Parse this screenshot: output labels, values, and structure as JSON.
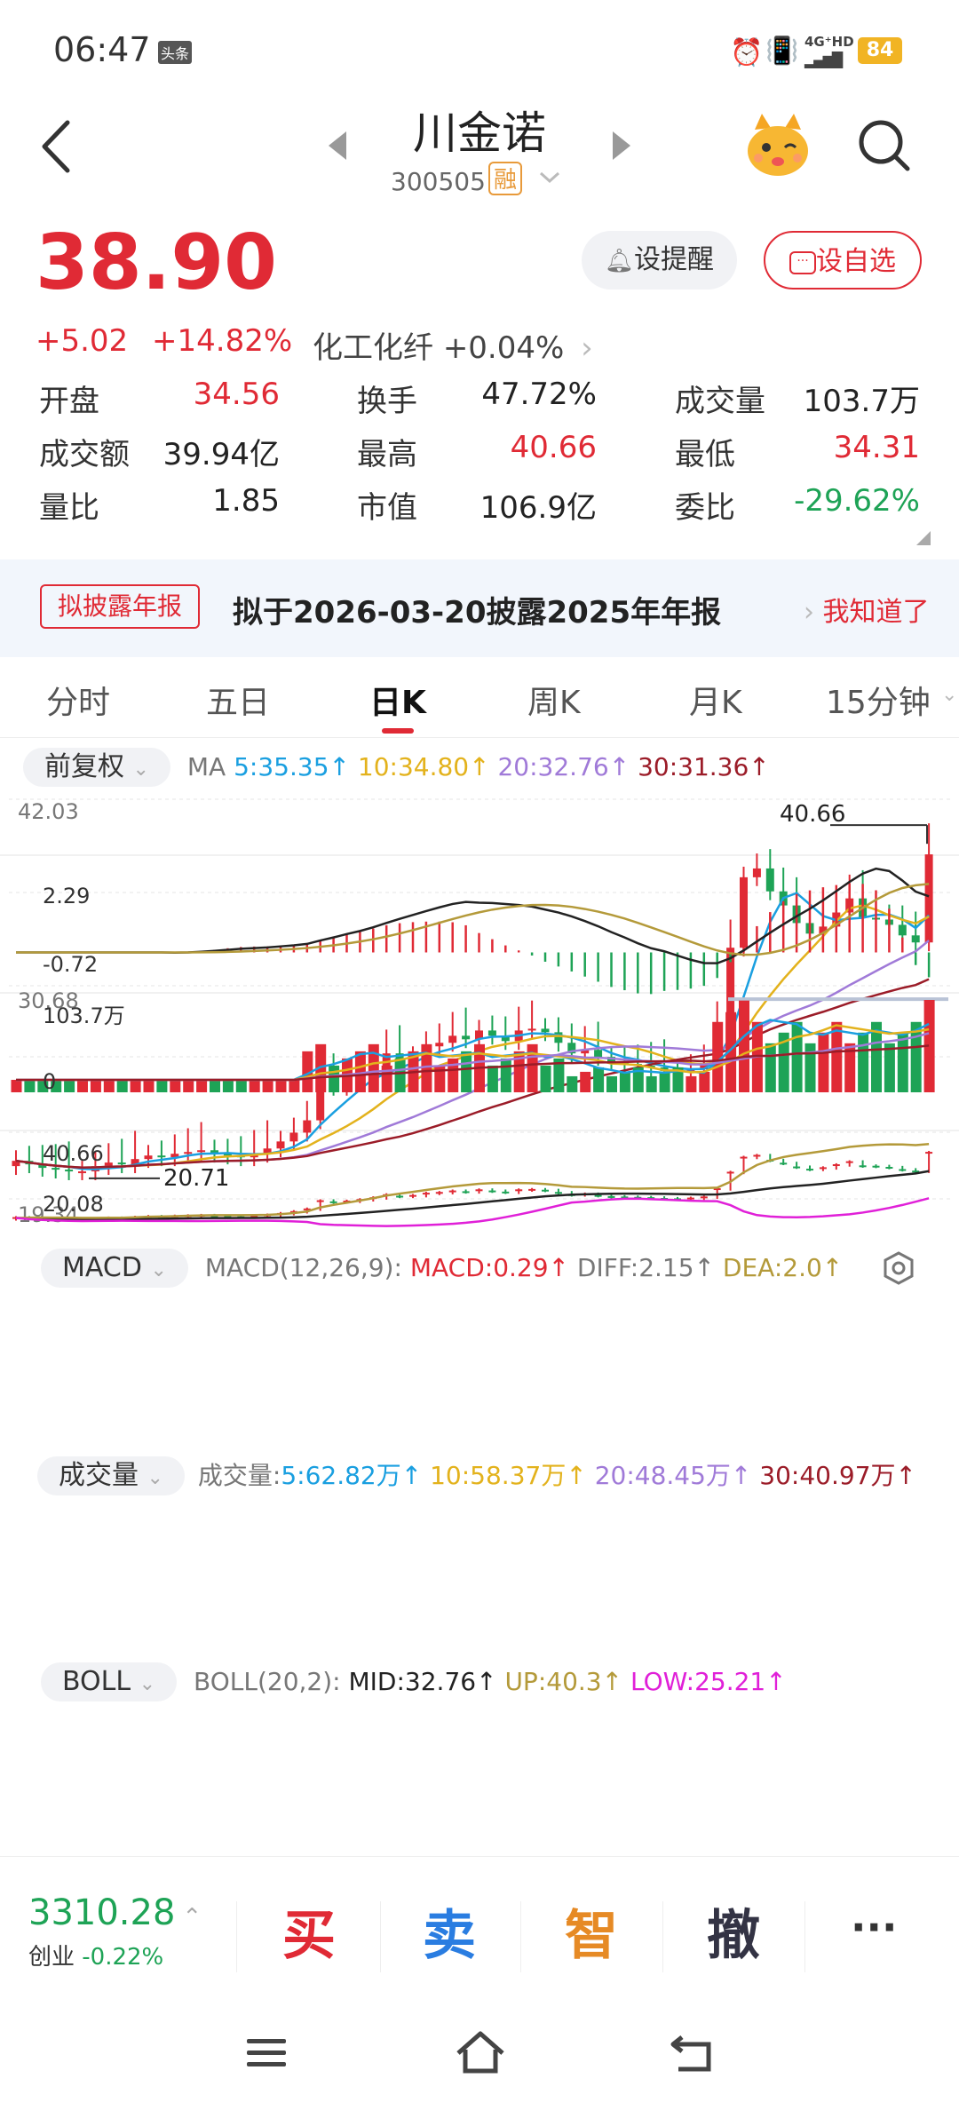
{
  "status": {
    "time": "06:47",
    "notif_badge": "头条",
    "network": "4G⁺HD",
    "battery": "84"
  },
  "header": {
    "name": "川金诺",
    "code": "300505",
    "tag": "融"
  },
  "quote": {
    "price": "38.90",
    "change": "+5.02",
    "change_pct": "+14.82%",
    "sector_name": "化工化纤",
    "sector_pct": "+0.04%",
    "remind_label": "设提醒",
    "watch_label": "设自选",
    "rows": [
      [
        {
          "label": "开盘",
          "value": "34.56",
          "color": "red"
        },
        {
          "label": "换手",
          "value": "47.72%",
          "color": "black"
        },
        {
          "label": "成交量",
          "value": "103.7万",
          "color": "black"
        }
      ],
      [
        {
          "label": "成交额",
          "value": "39.94亿",
          "color": "black"
        },
        {
          "label": "最高",
          "value": "40.66",
          "color": "red"
        },
        {
          "label": "最低",
          "value": "34.31",
          "color": "red"
        }
      ],
      [
        {
          "label": "量比",
          "value": "1.85",
          "color": "black"
        },
        {
          "label": "市值",
          "value": "106.9亿",
          "color": "black"
        },
        {
          "label": "委比",
          "value": "-29.62%",
          "color": "green"
        }
      ]
    ]
  },
  "notice": {
    "tag": "拟披露年报",
    "text": "拟于2026-03-20披露2025年年报",
    "action": "我知道了"
  },
  "tabs": [
    "分时",
    "五日",
    "日K",
    "周K",
    "月K",
    "15分钟"
  ],
  "active_tab": 2,
  "kline": {
    "adjust": "前复权",
    "ma_label": "MA",
    "ma5": "5:35.35↑",
    "ma10": "10:34.80↑",
    "ma20": "20:32.76↑",
    "ma30": "30:31.36↑",
    "y_top": "42.03",
    "y_mid": "30.68",
    "y_bottom": "19.34",
    "high_label": "40.66",
    "low_label": "20.71"
  },
  "macd": {
    "selector": "MACD",
    "params": "MACD(12,26,9):",
    "macd": "MACD:0.29↑",
    "diff": "DIFF:2.15↑",
    "dea": "DEA:2.0↑",
    "y_top": "2.29",
    "y_bottom": "-0.72"
  },
  "volume": {
    "selector": "成交量",
    "label": "成交量:",
    "v5": "5:62.82万↑",
    "v10": "10:58.37万↑",
    "v20": "20:48.45万↑",
    "v30": "30:40.97万↑",
    "y_top": "103.7万",
    "y_zero": "0"
  },
  "boll": {
    "selector": "BOLL",
    "params": "BOLL(20,2):",
    "mid": "MID:32.76↑",
    "up": "UP:40.3↑",
    "low": "LOW:25.21↑",
    "y_top": "40.66",
    "y_bottom": "20.08"
  },
  "index": {
    "value": "3310.28",
    "name": "创业",
    "pct": "-0.22%"
  },
  "actions": {
    "buy": "买",
    "sell": "卖",
    "smart": "智",
    "cancel": "撤",
    "more": "···"
  },
  "colors": {
    "up": "#e02a35",
    "down": "#1ea356",
    "ma5": "#1a9fe0",
    "ma10": "#e3b21c",
    "ma20": "#a07ad8",
    "ma30": "#9b1c28",
    "boll_up": "#b49a3a",
    "boll_low": "#e020d8"
  }
}
